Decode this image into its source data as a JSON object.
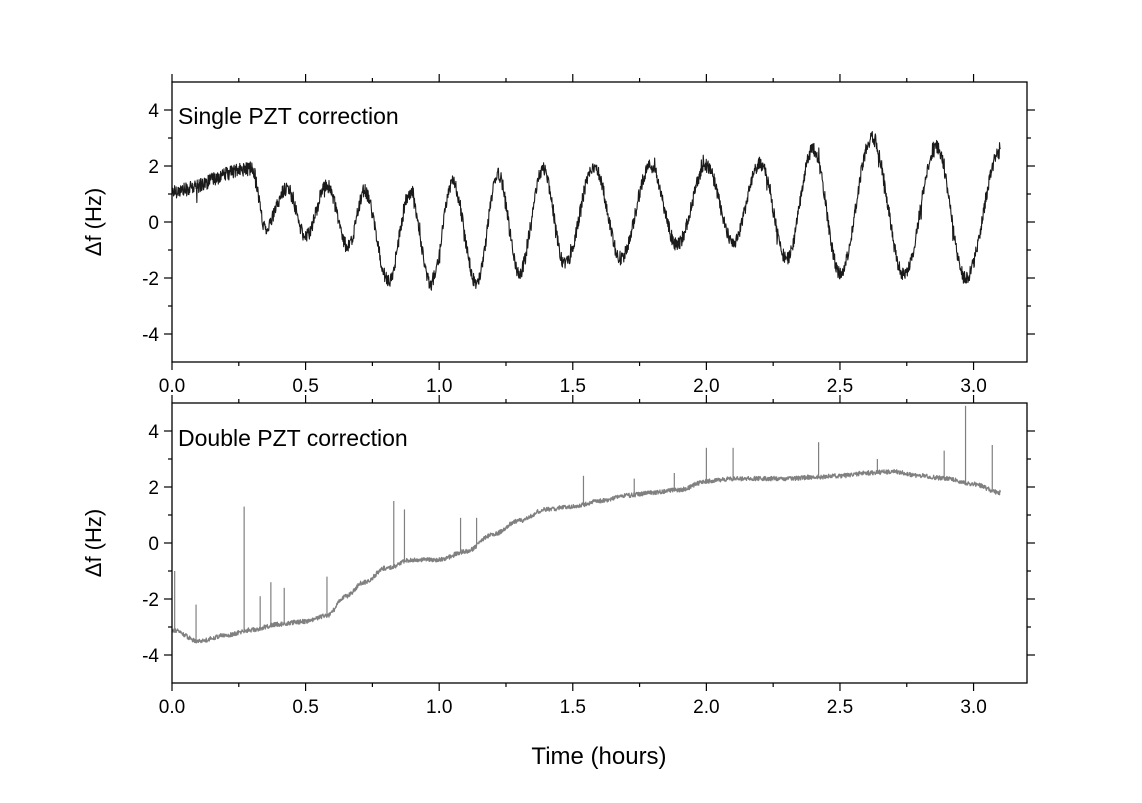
{
  "chart_data": [
    {
      "type": "line",
      "annotation": "Single PZT correction",
      "ylabel": "Δf (Hz)",
      "xlabel": "",
      "xlim": [
        0,
        3.2
      ],
      "ylim": [
        -5,
        5
      ],
      "x_ticks": [
        0.0,
        0.5,
        1.0,
        1.5,
        2.0,
        2.5,
        3.0
      ],
      "x_tick_labels": [
        "0.0",
        "0.5",
        "1.0",
        "1.5",
        "2.0",
        "2.5",
        "3.0"
      ],
      "y_ticks": [
        -4,
        -2,
        0,
        2,
        4
      ],
      "y_tick_labels": [
        "-4",
        "-2",
        "0",
        "2",
        "4"
      ],
      "series": [
        {
          "name": "Single PZT correction",
          "color": "#1a1a1a",
          "x_range": [
            0.0,
            3.1
          ],
          "noise_amplitude": 0.25,
          "envelope": {
            "x": [
              0.0,
              0.3,
              0.35,
              0.43,
              0.5,
              0.58,
              0.66,
              0.72,
              0.81,
              0.89,
              0.97,
              1.05,
              1.14,
              1.22,
              1.3,
              1.39,
              1.47,
              1.58,
              1.68,
              1.79,
              1.89,
              2.0,
              2.1,
              2.2,
              2.3,
              2.4,
              2.5,
              2.62,
              2.74,
              2.86,
              2.97,
              3.1
            ],
            "y": [
              1.1,
              1.9,
              -0.2,
              1.2,
              -0.5,
              1.3,
              -0.9,
              1.1,
              -2.1,
              1.0,
              -2.2,
              1.4,
              -2.2,
              1.7,
              -1.8,
              1.9,
              -1.5,
              2.0,
              -1.3,
              2.0,
              -0.8,
              2.0,
              -0.7,
              2.1,
              -1.3,
              2.6,
              -1.8,
              3.0,
              -1.9,
              2.7,
              -2.0,
              2.5
            ]
          }
        }
      ]
    },
    {
      "type": "line",
      "annotation": "Double PZT correction",
      "ylabel": "Δf (Hz)",
      "xlabel": "Time (hours)",
      "xlim": [
        0,
        3.2
      ],
      "ylim": [
        -5,
        5
      ],
      "x_ticks": [
        0.0,
        0.5,
        1.0,
        1.5,
        2.0,
        2.5,
        3.0
      ],
      "x_tick_labels": [
        "0.0",
        "0.5",
        "1.0",
        "1.5",
        "2.0",
        "2.5",
        "3.0"
      ],
      "y_ticks": [
        -4,
        -2,
        0,
        2,
        4
      ],
      "y_tick_labels": [
        "-4",
        "-2",
        "0",
        "2",
        "4"
      ],
      "series": [
        {
          "name": "Double PZT correction",
          "color": "#808080",
          "x_range": [
            0.0,
            3.1
          ],
          "noise_amplitude": 0.08,
          "baseline": {
            "x": [
              0.0,
              0.1,
              0.2,
              0.3,
              0.4,
              0.5,
              0.58,
              0.65,
              0.72,
              0.8,
              0.9,
              1.0,
              1.1,
              1.2,
              1.3,
              1.4,
              1.5,
              1.6,
              1.7,
              1.8,
              1.9,
              2.0,
              2.1,
              2.2,
              2.3,
              2.4,
              2.5,
              2.6,
              2.7,
              2.8,
              2.9,
              3.0,
              3.1
            ],
            "y": [
              -3.1,
              -3.5,
              -3.3,
              -3.1,
              -2.9,
              -2.8,
              -2.6,
              -1.9,
              -1.4,
              -0.9,
              -0.6,
              -0.6,
              -0.3,
              0.3,
              0.8,
              1.2,
              1.3,
              1.5,
              1.7,
              1.8,
              1.9,
              2.2,
              2.3,
              2.3,
              2.3,
              2.35,
              2.4,
              2.5,
              2.55,
              2.4,
              2.3,
              2.1,
              1.8
            ]
          },
          "spikes": [
            {
              "x": 0.01,
              "y": -1.0
            },
            {
              "x": 0.09,
              "y": -2.2
            },
            {
              "x": 0.27,
              "y": 1.3
            },
            {
              "x": 0.33,
              "y": -1.9
            },
            {
              "x": 0.37,
              "y": -1.4
            },
            {
              "x": 0.42,
              "y": -1.6
            },
            {
              "x": 0.58,
              "y": -1.2
            },
            {
              "x": 0.83,
              "y": 1.5
            },
            {
              "x": 0.87,
              "y": 1.2
            },
            {
              "x": 1.08,
              "y": 0.9
            },
            {
              "x": 1.14,
              "y": 0.9
            },
            {
              "x": 1.54,
              "y": 2.4
            },
            {
              "x": 1.73,
              "y": 2.3
            },
            {
              "x": 1.88,
              "y": 2.5
            },
            {
              "x": 2.0,
              "y": 3.4
            },
            {
              "x": 2.1,
              "y": 3.4
            },
            {
              "x": 2.42,
              "y": 3.6
            },
            {
              "x": 2.64,
              "y": 3.0
            },
            {
              "x": 2.89,
              "y": 3.3
            },
            {
              "x": 2.97,
              "y": 4.9
            },
            {
              "x": 3.07,
              "y": 3.5
            }
          ]
        }
      ]
    }
  ]
}
